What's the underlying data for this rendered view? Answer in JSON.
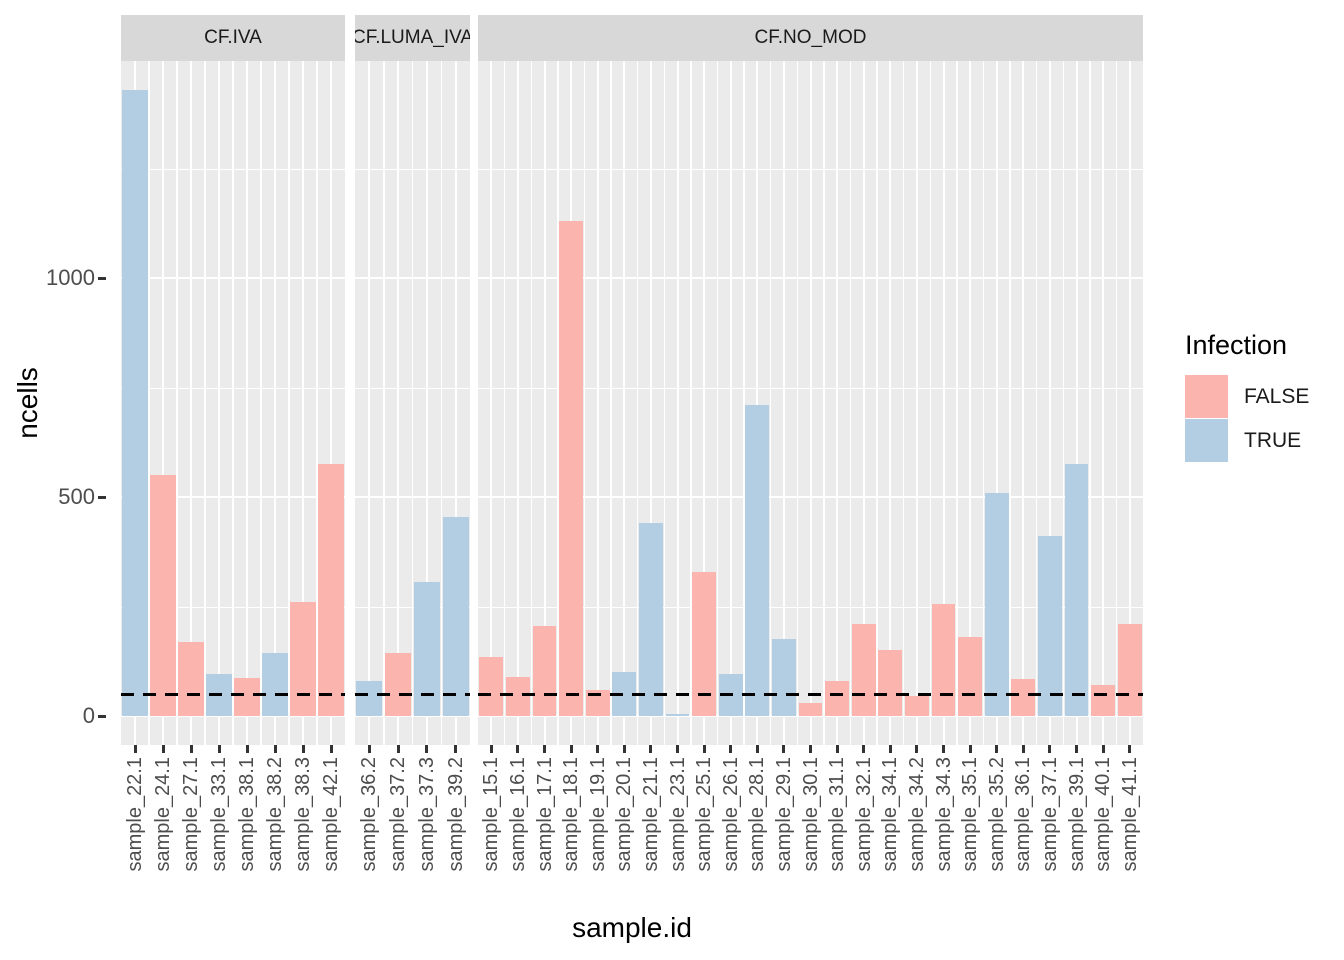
{
  "chart_data": {
    "type": "bar",
    "title": "",
    "xlabel": "sample.id",
    "ylabel": "ncells",
    "y_ticks": [
      "0",
      "500",
      "1000"
    ],
    "y_tick_values": [
      0,
      500,
      1000
    ],
    "ylim": [
      -66,
      1495
    ],
    "grid": {
      "major": [
        0,
        500,
        1000
      ],
      "minor": [
        250,
        750,
        1250
      ],
      "grid_on": true
    },
    "hline": {
      "value": 50,
      "style": "dashed",
      "color": "#000000"
    },
    "legend": {
      "title": "Infection",
      "position": "right",
      "entries": [
        {
          "label": "FALSE",
          "color": "#FBB4AE"
        },
        {
          "label": "TRUE",
          "color": "#B3CDE3"
        }
      ]
    },
    "colors": {
      "FALSE": "#FBB4AE",
      "TRUE": "#B3CDE3",
      "panel_bg": "#EBEBEB",
      "strip_bg": "#D8D8D8",
      "gridline": "#FFFFFF",
      "tick_text": "#4D4D4D",
      "strip_text": "#1A1A1A"
    },
    "facets": [
      {
        "label": "CF.IVA",
        "bars": [
          {
            "id": "sample_22.1",
            "infection": "TRUE",
            "ncells": 1430
          },
          {
            "id": "sample_24.1",
            "infection": "FALSE",
            "ncells": 550
          },
          {
            "id": "sample_27.1",
            "infection": "FALSE",
            "ncells": 170
          },
          {
            "id": "sample_33.1",
            "infection": "TRUE",
            "ncells": 95
          },
          {
            "id": "sample_38.1",
            "infection": "FALSE",
            "ncells": 88
          },
          {
            "id": "sample_38.2",
            "infection": "TRUE",
            "ncells": 145
          },
          {
            "id": "sample_38.3",
            "infection": "FALSE",
            "ncells": 260
          },
          {
            "id": "sample_42.1",
            "infection": "FALSE",
            "ncells": 575
          }
        ]
      },
      {
        "label": "CF.LUMA_IVA",
        "bars": [
          {
            "id": "sample_36.2",
            "infection": "TRUE",
            "ncells": 80
          },
          {
            "id": "sample_37.2",
            "infection": "FALSE",
            "ncells": 145
          },
          {
            "id": "sample_37.3",
            "infection": "TRUE",
            "ncells": 305
          },
          {
            "id": "sample_39.2",
            "infection": "TRUE",
            "ncells": 455
          }
        ]
      },
      {
        "label": "CF.NO_MOD",
        "bars": [
          {
            "id": "sample_15.1",
            "infection": "FALSE",
            "ncells": 135
          },
          {
            "id": "sample_16.1",
            "infection": "FALSE",
            "ncells": 90
          },
          {
            "id": "sample_17.1",
            "infection": "FALSE",
            "ncells": 205
          },
          {
            "id": "sample_18.1",
            "infection": "FALSE",
            "ncells": 1130
          },
          {
            "id": "sample_19.1",
            "infection": "FALSE",
            "ncells": 60
          },
          {
            "id": "sample_20.1",
            "infection": "TRUE",
            "ncells": 100
          },
          {
            "id": "sample_21.1",
            "infection": "TRUE",
            "ncells": 440
          },
          {
            "id": "sample_23.1",
            "infection": "TRUE",
            "ncells": 5
          },
          {
            "id": "sample_25.1",
            "infection": "FALSE",
            "ncells": 330
          },
          {
            "id": "sample_26.1",
            "infection": "TRUE",
            "ncells": 95
          },
          {
            "id": "sample_28.1",
            "infection": "TRUE",
            "ncells": 710
          },
          {
            "id": "sample_29.1",
            "infection": "TRUE",
            "ncells": 175
          },
          {
            "id": "sample_30.1",
            "infection": "FALSE",
            "ncells": 30
          },
          {
            "id": "sample_31.1",
            "infection": "FALSE",
            "ncells": 80
          },
          {
            "id": "sample_32.1",
            "infection": "FALSE",
            "ncells": 210
          },
          {
            "id": "sample_34.1",
            "infection": "FALSE",
            "ncells": 150
          },
          {
            "id": "sample_34.2",
            "infection": "FALSE",
            "ncells": 45
          },
          {
            "id": "sample_34.3",
            "infection": "FALSE",
            "ncells": 255
          },
          {
            "id": "sample_35.1",
            "infection": "FALSE",
            "ncells": 180
          },
          {
            "id": "sample_35.2",
            "infection": "TRUE",
            "ncells": 510
          },
          {
            "id": "sample_36.1",
            "infection": "FALSE",
            "ncells": 85
          },
          {
            "id": "sample_37.1",
            "infection": "TRUE",
            "ncells": 410
          },
          {
            "id": "sample_39.1",
            "infection": "TRUE",
            "ncells": 575
          },
          {
            "id": "sample_40.1",
            "infection": "FALSE",
            "ncells": 72
          },
          {
            "id": "sample_41.1",
            "infection": "FALSE",
            "ncells": 210
          }
        ]
      }
    ]
  }
}
